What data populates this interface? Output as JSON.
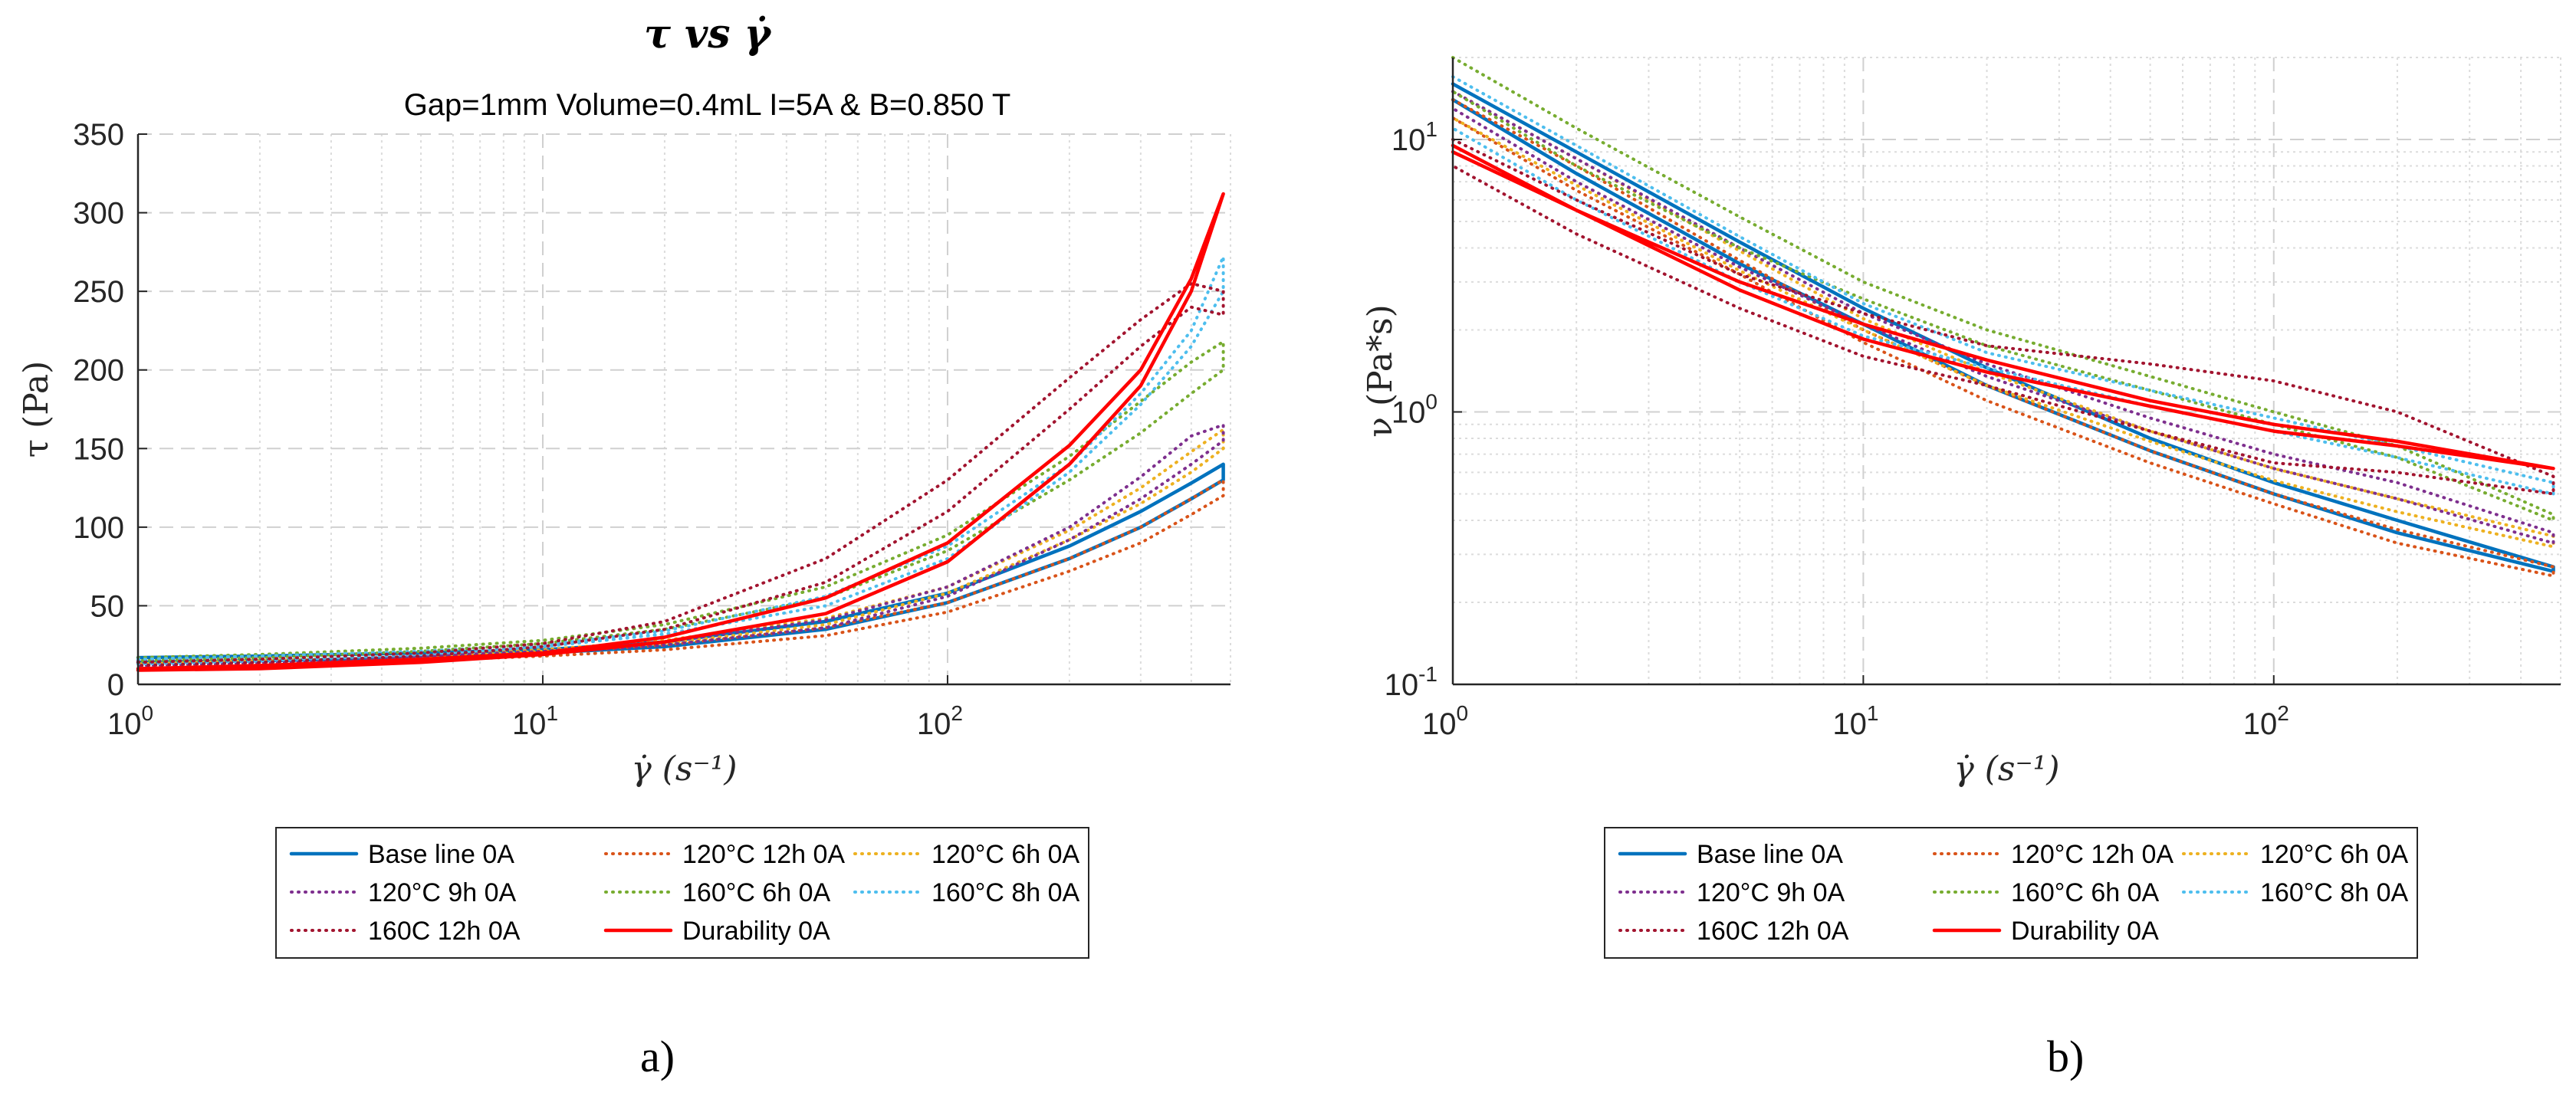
{
  "panel_labels": [
    "a)",
    "b)"
  ],
  "chart_data": [
    {
      "type": "line",
      "title": "τ vs γ̇",
      "subtitle": "Gap=1mm Volume=0.4mL I=5A & B=0.850 T",
      "xlabel": "γ̇ (s⁻¹)",
      "ylabel": "τ (Pa)",
      "xscale": "log",
      "yscale": "linear",
      "xlim": [
        1,
        500
      ],
      "ylim": [
        0,
        350
      ],
      "grid": true,
      "legend_position": "bottom",
      "x_ticks": [
        {
          "value": 1,
          "base": "10",
          "exp": "0"
        },
        {
          "value": 10,
          "base": "10",
          "exp": "1"
        },
        {
          "value": 100,
          "base": "10",
          "exp": "2"
        }
      ],
      "y_ticks": [
        "0",
        "50",
        "100",
        "150",
        "200",
        "250",
        "300",
        "350"
      ],
      "series": [
        {
          "name": "Base line 0A",
          "color": "#0072BD",
          "style": "solid",
          "x": [
            1,
            2,
            5,
            10,
            20,
            50,
            100,
            200,
            300,
            400,
            480,
            480,
            400,
            300,
            200,
            100,
            50,
            20,
            10,
            5,
            2,
            1
          ],
          "values": [
            17,
            18,
            20,
            22,
            27,
            40,
            58,
            88,
            110,
            128,
            140,
            130,
            118,
            100,
            80,
            52,
            35,
            24,
            20,
            17,
            15,
            14
          ]
        },
        {
          "name": "120°C 12h 0A",
          "color": "#D95319",
          "style": "dotted",
          "x": [
            1,
            2,
            5,
            10,
            20,
            50,
            100,
            200,
            300,
            400,
            480,
            480,
            400,
            300,
            200,
            100,
            50,
            20,
            10,
            5,
            2,
            1
          ],
          "values": [
            15,
            16,
            18,
            20,
            25,
            36,
            52,
            80,
            100,
            118,
            130,
            120,
            108,
            90,
            72,
            46,
            31,
            22,
            18,
            15,
            13,
            12
          ]
        },
        {
          "name": "120°C 6h 0A",
          "color": "#EDB120",
          "style": "dotted",
          "x": [
            1,
            2,
            5,
            10,
            20,
            50,
            100,
            200,
            300,
            400,
            480,
            480,
            400,
            300,
            200,
            100,
            50,
            20,
            10,
            5,
            2,
            1
          ],
          "values": [
            16,
            17,
            19,
            22,
            28,
            42,
            62,
            98,
            125,
            148,
            162,
            150,
            135,
            115,
            92,
            58,
            38,
            26,
            21,
            17,
            15,
            13
          ]
        },
        {
          "name": "120°C 9h 0A",
          "color": "#7E2F8E",
          "style": "dotted",
          "x": [
            1,
            2,
            5,
            10,
            20,
            50,
            100,
            200,
            300,
            400,
            480,
            480,
            400,
            300,
            200,
            100,
            50,
            20,
            10,
            5,
            2,
            1
          ],
          "values": [
            15,
            16,
            18,
            21,
            27,
            41,
            62,
            100,
            132,
            158,
            165,
            155,
            140,
            118,
            92,
            56,
            36,
            25,
            20,
            16,
            14,
            12
          ]
        },
        {
          "name": "160°C 6h 0A",
          "color": "#77AC30",
          "style": "dotted",
          "x": [
            1,
            2,
            5,
            10,
            20,
            50,
            100,
            200,
            300,
            400,
            480,
            480,
            400,
            300,
            200,
            100,
            50,
            20,
            10,
            5,
            2,
            1
          ],
          "values": [
            17,
            19,
            23,
            28,
            38,
            62,
            95,
            145,
            180,
            205,
            218,
            200,
            185,
            160,
            130,
            85,
            55,
            35,
            26,
            21,
            17,
            15
          ]
        },
        {
          "name": "160°C 8h 0A",
          "color": "#4DBEEE",
          "style": "dotted",
          "x": [
            1,
            2,
            5,
            10,
            20,
            50,
            100,
            200,
            300,
            400,
            480,
            480,
            400,
            300,
            200,
            100,
            50,
            20,
            10,
            5,
            2,
            1
          ],
          "values": [
            16,
            18,
            21,
            25,
            34,
            56,
            88,
            140,
            185,
            225,
            272,
            250,
            215,
            178,
            135,
            80,
            50,
            32,
            24,
            19,
            15,
            13
          ]
        },
        {
          "name": "160C 12h 0A",
          "color": "#A2142F",
          "style": "dotted",
          "x": [
            1,
            2,
            5,
            10,
            20,
            50,
            100,
            200,
            300,
            400,
            480,
            480,
            400,
            300,
            200,
            100,
            50,
            20,
            10,
            5,
            2,
            1
          ],
          "values": [
            14,
            16,
            20,
            26,
            40,
            80,
            130,
            195,
            232,
            255,
            250,
            235,
            240,
            215,
            175,
            110,
            65,
            35,
            24,
            18,
            14,
            12
          ]
        },
        {
          "name": "Durability 0A",
          "color": "#FF0000",
          "style": "solid",
          "x": [
            1,
            2,
            5,
            10,
            20,
            50,
            100,
            200,
            300,
            400,
            480,
            480,
            400,
            300,
            200,
            100,
            50,
            20,
            10,
            5,
            2,
            1
          ],
          "values": [
            10,
            12,
            16,
            20,
            30,
            55,
            90,
            152,
            200,
            258,
            312,
            312,
            250,
            190,
            140,
            78,
            45,
            27,
            19,
            14,
            10,
            9
          ]
        }
      ]
    },
    {
      "type": "line",
      "title": "",
      "xlabel": "γ̇ (s⁻¹)",
      "ylabel": "ν (Pa*s)",
      "xscale": "log",
      "yscale": "log",
      "xlim": [
        1,
        500
      ],
      "ylim": [
        0.1,
        20
      ],
      "grid": true,
      "legend_position": "bottom",
      "x_ticks": [
        {
          "value": 1,
          "base": "10",
          "exp": "0"
        },
        {
          "value": 10,
          "base": "10",
          "exp": "1"
        },
        {
          "value": 100,
          "base": "10",
          "exp": "2"
        }
      ],
      "y_ticks": [
        {
          "value": 0.1,
          "base": "10",
          "exp": "-1"
        },
        {
          "value": 1,
          "base": "10",
          "exp": "0"
        },
        {
          "value": 10,
          "base": "10",
          "exp": "1"
        }
      ],
      "series": [
        {
          "name": "Base line 0A",
          "color": "#0072BD",
          "style": "solid",
          "x": [
            1,
            2,
            5,
            10,
            20,
            50,
            100,
            200,
            480,
            480,
            200,
            100,
            50,
            20,
            10,
            5,
            2,
            1
          ],
          "values": [
            16,
            9,
            4.2,
            2.4,
            1.45,
            0.8,
            0.55,
            0.4,
            0.27,
            0.26,
            0.36,
            0.5,
            0.72,
            1.25,
            2.1,
            3.5,
            7.5,
            14
          ]
        },
        {
          "name": "120°C 12h 0A",
          "color": "#D95319",
          "style": "dotted",
          "x": [
            1,
            2,
            5,
            10,
            20,
            50,
            100,
            200,
            480,
            480,
            200,
            100,
            50,
            20,
            10,
            5,
            2,
            1
          ],
          "values": [
            14,
            8,
            3.6,
            2.0,
            1.25,
            0.72,
            0.5,
            0.37,
            0.27,
            0.25,
            0.33,
            0.46,
            0.65,
            1.1,
            1.8,
            3.2,
            6.5,
            12
          ]
        },
        {
          "name": "120°C 6h 0A",
          "color": "#EDB120",
          "style": "dotted",
          "x": [
            1,
            2,
            5,
            10,
            20,
            50,
            100,
            200,
            480,
            480,
            200,
            100,
            50,
            20,
            10,
            5,
            2,
            1
          ],
          "values": [
            15,
            8.5,
            3.9,
            2.2,
            1.4,
            0.85,
            0.62,
            0.48,
            0.35,
            0.32,
            0.43,
            0.56,
            0.78,
            1.25,
            2.0,
            3.3,
            6.8,
            12
          ]
        },
        {
          "name": "120°C 9h 0A",
          "color": "#7E2F8E",
          "style": "dotted",
          "x": [
            1,
            2,
            5,
            10,
            20,
            50,
            100,
            200,
            480,
            480,
            200,
            100,
            50,
            20,
            10,
            5,
            2,
            1
          ],
          "values": [
            15,
            8.5,
            4.0,
            2.3,
            1.5,
            0.95,
            0.7,
            0.55,
            0.36,
            0.33,
            0.48,
            0.62,
            0.85,
            1.35,
            2.1,
            3.4,
            7.0,
            13
          ]
        },
        {
          "name": "160°C 6h 0A",
          "color": "#77AC30",
          "style": "dotted",
          "x": [
            1,
            2,
            5,
            10,
            20,
            50,
            100,
            200,
            480,
            480,
            200,
            100,
            50,
            20,
            10,
            5,
            2,
            1
          ],
          "values": [
            20,
            11,
            5.2,
            3.0,
            2.0,
            1.35,
            1.0,
            0.75,
            0.42,
            0.4,
            0.68,
            0.9,
            1.2,
            1.75,
            2.6,
            4.0,
            8.0,
            15
          ]
        },
        {
          "name": "160°C 8h 0A",
          "color": "#4DBEEE",
          "style": "dotted",
          "x": [
            1,
            2,
            5,
            10,
            20,
            50,
            100,
            200,
            480,
            480,
            200,
            100,
            50,
            20,
            10,
            5,
            2,
            1
          ],
          "values": [
            17,
            9.5,
            4.4,
            2.5,
            1.65,
            1.2,
            0.95,
            0.75,
            0.55,
            0.5,
            0.68,
            0.85,
            1.05,
            1.45,
            1.9,
            3.0,
            6.0,
            11
          ]
        },
        {
          "name": "160C 12h 0A",
          "color": "#A2142F",
          "style": "dotted",
          "x": [
            1,
            2,
            5,
            10,
            20,
            50,
            100,
            200,
            480,
            480,
            200,
            100,
            50,
            20,
            10,
            5,
            2,
            1
          ],
          "values": [
            10,
            6,
            3.2,
            2.3,
            1.75,
            1.5,
            1.3,
            1.0,
            0.58,
            0.5,
            0.6,
            0.65,
            0.85,
            1.25,
            1.6,
            2.4,
            4.5,
            8
          ]
        },
        {
          "name": "Durability 0A",
          "color": "#FF0000",
          "style": "solid",
          "x": [
            1,
            2,
            5,
            10,
            20,
            50,
            100,
            200,
            480,
            480,
            200,
            100,
            50,
            20,
            10,
            5,
            2,
            1
          ],
          "values": [
            9,
            5.5,
            3.0,
            2.1,
            1.55,
            1.1,
            0.9,
            0.78,
            0.62,
            0.62,
            0.75,
            0.85,
            1.05,
            1.4,
            1.85,
            2.8,
            5.5,
            9.5
          ]
        }
      ]
    }
  ]
}
